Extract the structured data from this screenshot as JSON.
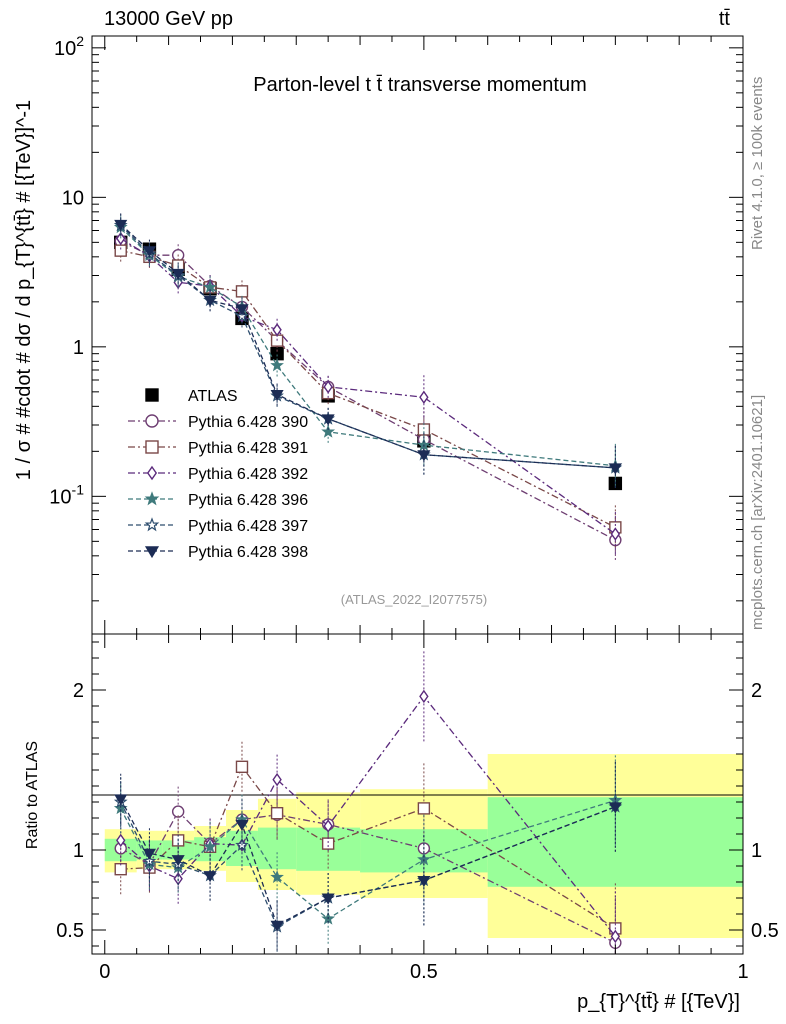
{
  "header": {
    "left": "13000 GeV pp",
    "right": "tt̄"
  },
  "side_labels": {
    "rivet": "Rivet 4.1.0, ≥ 100k events",
    "mcplots": "mcplots.cern.ch [arXiv:2401.10621]"
  },
  "chart_data": [
    {
      "type": "scatter",
      "panel": "main",
      "title": "Parton-level t t̄ transverse momentum",
      "analysis_tag": "(ATLAS_2022_I2077575)",
      "ylabel": "1 / σ # #cdot # dσ / d p_{T}^{tt̄} # [{TeV}]^-1",
      "yscale": "log",
      "ylim": [
        0.012,
        120
      ],
      "xlim": [
        -0.02,
        1.0
      ],
      "ytick_labels": [
        "10^-1",
        "1",
        "10",
        "10^2"
      ],
      "x": [
        0.025,
        0.07,
        0.115,
        0.165,
        0.215,
        0.27,
        0.35,
        0.5,
        0.8
      ],
      "series": [
        {
          "name": "ATLAS",
          "color": "#000000",
          "marker": "filled-square",
          "line": "none",
          "values": [
            5.0,
            4.5,
            3.3,
            2.45,
            1.55,
            0.9,
            0.47,
            0.235,
            0.122
          ]
        },
        {
          "name": "Pythia 6.428 390",
          "color": "#6e3e72",
          "marker": "open-circle",
          "line": "dashdot",
          "values": [
            5.1,
            4.1,
            4.1,
            2.55,
            1.85,
            1.1,
            0.54,
            0.24,
            0.051
          ]
        },
        {
          "name": "Pythia 6.428 391",
          "color": "#7a4848",
          "marker": "open-square",
          "line": "dashdot",
          "values": [
            4.4,
            4.0,
            3.5,
            2.5,
            2.35,
            1.1,
            0.49,
            0.28,
            0.062
          ]
        },
        {
          "name": "Pythia 6.428 392",
          "color": "#5b2a7c",
          "marker": "open-diamond",
          "line": "dashdot",
          "values": [
            5.3,
            4.05,
            2.7,
            2.55,
            1.6,
            1.3,
            0.54,
            0.46,
            0.056
          ]
        },
        {
          "name": "Pythia 6.428 396",
          "color": "#3f7a7c",
          "marker": "filled-star",
          "line": "dashed",
          "values": [
            6.3,
            4.1,
            2.95,
            2.5,
            1.85,
            0.75,
            0.27,
            0.22,
            0.16
          ]
        },
        {
          "name": "Pythia 6.428 397",
          "color": "#2d4d6e",
          "marker": "open-star",
          "line": "dashed",
          "values": [
            6.5,
            4.2,
            3.0,
            2.05,
            1.6,
            0.47,
            0.33,
            0.19,
            0.155
          ]
        },
        {
          "name": "Pythia 6.428 398",
          "color": "#1c2c55",
          "marker": "filled-triangle-down",
          "line": "dashed",
          "values": [
            6.6,
            4.4,
            3.1,
            2.05,
            1.8,
            0.48,
            0.33,
            0.19,
            0.155
          ]
        }
      ]
    },
    {
      "type": "scatter",
      "panel": "ratio",
      "ylabel": "Ratio to ATLAS",
      "xlabel": "p_{T}^{tt̄} # [{TeV}]",
      "ylim": [
        0.35,
        2.35
      ],
      "xlim": [
        -0.02,
        1.0
      ],
      "ytick_labels": [
        "0.5",
        "1",
        "2"
      ],
      "xtick_labels": [
        "0",
        "0.5",
        "1"
      ],
      "bins": [
        [
          0.0,
          0.05
        ],
        [
          0.05,
          0.09
        ],
        [
          0.09,
          0.14
        ],
        [
          0.14,
          0.19
        ],
        [
          0.19,
          0.24
        ],
        [
          0.24,
          0.3
        ],
        [
          0.3,
          0.4
        ],
        [
          0.4,
          0.6
        ],
        [
          0.6,
          1.0
        ]
      ],
      "band_inner": [
        [
          0.93,
          1.07
        ],
        [
          0.94,
          1.06
        ],
        [
          0.94,
          1.06
        ],
        [
          0.93,
          1.08
        ],
        [
          0.9,
          1.12
        ],
        [
          0.88,
          1.14
        ],
        [
          0.87,
          1.14
        ],
        [
          0.86,
          1.13
        ],
        [
          0.77,
          1.33
        ]
      ],
      "band_outer": [
        [
          0.86,
          1.13
        ],
        [
          0.88,
          1.12
        ],
        [
          0.88,
          1.12
        ],
        [
          0.87,
          1.15
        ],
        [
          0.8,
          1.25
        ],
        [
          0.75,
          1.32
        ],
        [
          0.72,
          1.36
        ],
        [
          0.7,
          1.38
        ],
        [
          0.45,
          1.6
        ]
      ],
      "band_colors": {
        "inner": "#99ff99",
        "outer": "#ffff99"
      },
      "x": [
        0.025,
        0.07,
        0.115,
        0.165,
        0.215,
        0.27,
        0.35,
        0.5,
        0.8
      ],
      "series": [
        {
          "name": "Pythia 6.428 390",
          "values": [
            1.01,
            0.91,
            1.24,
            1.04,
            1.19,
            1.22,
            1.16,
            1.01,
            0.42
          ]
        },
        {
          "name": "Pythia 6.428 391",
          "values": [
            0.88,
            0.89,
            1.06,
            1.02,
            1.52,
            1.23,
            1.04,
            1.26,
            0.51
          ]
        },
        {
          "name": "Pythia 6.428 392",
          "values": [
            1.06,
            0.9,
            0.82,
            1.04,
            1.03,
            1.44,
            1.15,
            1.96,
            0.46
          ]
        },
        {
          "name": "Pythia 6.428 396",
          "values": [
            1.26,
            0.91,
            0.89,
            1.02,
            1.19,
            0.83,
            0.57,
            0.94,
            1.31
          ]
        },
        {
          "name": "Pythia 6.428 397",
          "values": [
            1.3,
            0.93,
            0.91,
            0.84,
            1.03,
            0.52,
            0.7,
            0.81,
            1.27
          ]
        },
        {
          "name": "Pythia 6.428 398",
          "values": [
            1.32,
            0.98,
            0.94,
            0.84,
            1.16,
            0.53,
            0.7,
            0.81,
            1.27
          ]
        }
      ]
    }
  ]
}
